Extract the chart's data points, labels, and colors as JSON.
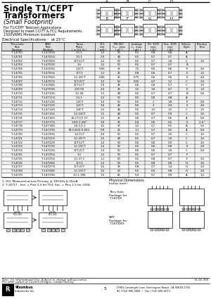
{
  "title_line1": "Single T1/CEPT",
  "title_line2": "Transformers",
  "subtitle": "(Small Footprint)",
  "desc_lines": [
    "For T1/CEPT Telecom Applications",
    "Designed to meet CCITT & FCC Requirements",
    "1500VRMS Minimum Isolation"
  ],
  "elec_spec_header": "Electrical Specifications ¹  at 25°C",
  "col_headers_line1": [
    "Thru-hole\nPart",
    "SMD\nPart",
    "Turns",
    "OCL",
    "PRI-SEC\nCₙₛₜ  max",
    "Leakage\nIₘ  max",
    "Pri. DCR\nmax",
    "Sec. DCR\nmax",
    "Schem.",
    "Primary"
  ],
  "col_headers_line2": [
    "Number",
    "Number",
    "Ratio\n( ± 0.5 % )",
    "min\n( mH )",
    "( pF )",
    "( μH )",
    "( Ω )",
    "( Ω )",
    "Style",
    "Pins"
  ],
  "table_data": [
    [
      "T-14700",
      "T-14700G",
      "1:1:1",
      "1.2",
      "50",
      "0.5",
      "0.8",
      "0.8",
      "A",
      ""
    ],
    [
      "T-14701",
      "T-14701G",
      "1:1:1",
      "2.0",
      "40",
      "0.5",
      "0.7",
      "0.7",
      "A",
      ""
    ],
    [
      "T-14702",
      "T-14702G",
      "1CT:1CT",
      "1.2",
      "50",
      "0.5",
      "0.7",
      "1.0",
      "C",
      "1-5"
    ],
    [
      "T-14703",
      "T-14703G",
      "1:1",
      "1.2",
      "50",
      "0.5",
      "0.7",
      "0.7",
      "B",
      ""
    ],
    [
      "T-14704",
      "T-14704G",
      "1:1CT",
      "0.06",
      "25",
      ".75",
      "0.6",
      "0.6",
      "E",
      "2-6"
    ],
    [
      "T-14705",
      "T-14705G",
      "1CT:1",
      "1.2",
      "25",
      "0.8",
      "0.6",
      "0.7",
      "E",
      "1-5"
    ],
    [
      "T-14706",
      "T-14706G",
      "1:1.25CT",
      "0.06",
      "25",
      "0.75",
      "0.6",
      "0.6",
      "E",
      "2-6"
    ],
    [
      "T-14707",
      "T-14707G",
      "1CT:2CT",
      "1.2",
      "50",
      "0.55",
      "0.7",
      "1.1",
      "C",
      "1-5"
    ],
    [
      "T-14708",
      "T-14708G",
      "2CT:1CT",
      "2.0",
      "45",
      "0.6",
      "0.6",
      "0.7",
      "C",
      "1-5"
    ],
    [
      "T-14709",
      "T-14709G",
      "2.5CT:II",
      "2.0",
      "25",
      "1.5",
      "1.0",
      "0.7",
      "E",
      "1-5"
    ],
    [
      "T-14710",
      "T-14710G",
      "1:1.36",
      "1.5",
      "40",
      "0.5",
      "0.7",
      "0.7",
      "B",
      "5-6"
    ],
    [
      "T-14711",
      "T-14711G",
      "1:1:1",
      "1.2",
      "50",
      "0.5",
      "0.8",
      "0.8",
      "A",
      ""
    ],
    [
      "T-14712",
      "T-14712G",
      "1:2CT",
      "1.2",
      "50",
      "0.5",
      "1",
      "1.8",
      "E",
      "2-6"
    ],
    [
      "T-14713",
      "T-14713G",
      "1:2CT",
      "3.0",
      "45",
      "0.6",
      "2",
      "2.4",
      "E",
      "2-6"
    ],
    [
      "T-14714",
      "T-14714G",
      "1:4CT",
      "1.5",
      "40",
      "0.5",
      "1.5",
      "1.5",
      "C",
      "1-5"
    ],
    [
      "T-14715",
      "T-14715G",
      "1:1.14CT",
      "1.5",
      "40",
      "0.5",
      "0.7",
      "5.9",
      "C",
      "1-5"
    ],
    [
      "T-14716",
      "T-14716G",
      "16,17:0.5:17",
      "1.5",
      "25",
      "0.6",
      "0.7",
      "0.6",
      "A",
      "5-6"
    ],
    [
      "T-14717",
      "T-14717G",
      "1.5/1:1.26/²",
      "1.0",
      "35",
      "0.4",
      "0.6",
      "0.5",
      "E",
      "2-6 ²"
    ],
    [
      "T-14718",
      "T-14718G",
      "1:0.5:2:1",
      "1.5",
      "25",
      "1.2",
      "0.7",
      "0.5",
      "A",
      "5-6"
    ],
    [
      "T-14719",
      "T-14719G",
      "E1:0.833:0.833",
      "0.9",
      "25",
      "1.1",
      "0.7",
      "0.5",
      "A",
      "5-6"
    ],
    [
      "T-14720",
      "T-14720G",
      "1:2:1CT",
      "2.0",
      "50",
      "0.5",
      "0.7",
      "1.0",
      "C",
      "1-5"
    ],
    [
      "T-14721",
      "T-14721G",
      "1:1.25CT",
      "1.5",
      "40",
      "0.5",
      "0.7",
      "1.0",
      "C",
      "1-5"
    ],
    [
      "T-14722",
      "T-14722G",
      "1CT:1CT",
      "1.2",
      "50",
      "0.6",
      "0.6",
      "0.9",
      "C",
      "1-5"
    ],
    [
      "T-14723",
      "T-14723G",
      "1:1.15CT",
      "1.2",
      "50",
      "0.5",
      "0.6",
      "0.8",
      "E",
      "2-6"
    ],
    [
      "T-14724",
      "T-14724G",
      "1CT:2CT",
      "1.2",
      "50",
      "0.6",
      "0.6",
      "1.0",
      "C",
      "2-6"
    ],
    [
      "T-14725",
      "T-14725G",
      "1:1",
      "1.2",
      "50",
      "0.5",
      "0.7",
      "0.7",
      "F",
      ""
    ],
    [
      "T-14725",
      "T-14725G",
      "1:1.37:1",
      "1.2",
      "60",
      "0.5",
      "0.8",
      "0.7",
      "F",
      "1-5"
    ],
    [
      "T-14726",
      "T-14726G",
      "1CT:1",
      "1.2",
      "50",
      "0.5",
      "0.8",
      "0.8",
      "H",
      "1-5"
    ],
    [
      "T-14727",
      "T-14727G",
      "1CT:2CT",
      "1.5",
      "35",
      "0.8",
      "0.7",
      "1.4",
      "G",
      "1-5"
    ],
    [
      "T-14728",
      "T-14728G",
      "1:1.15CT",
      "1.2",
      "50",
      "0.5",
      "0.6",
      "0.8",
      "H",
      "2-6"
    ],
    [
      "T-14729",
      "T-14729G",
      "1:1:1.286",
      "1.5",
      "65",
      "0.4",
      "0.7",
      "0.9",
      "A",
      "1-2"
    ]
  ],
  "footnotes": [
    "1. OCL Measured across Primary @ 100 kHz & 20mA",
    "2. T-14717 - Sec. = Pins 3-5 for T63; Sec. = Pins 1-5 for 120Ω"
  ],
  "phys_dim_title": "Physical Dimensions",
  "phys_dim_sub": "Inches (mm)",
  "pkg_label_1": "Thru-hole\nPackage for\nT-147XX",
  "pkg_label_2": "SMT\nPackage for\nT-147XXG",
  "bottom_note": "Spec. for informational Use. Subject to change without notice.",
  "bottom_note2": "For other values or Custom Designs, contact factory.",
  "part_number_bottom": "T1-03-300",
  "company_line1": "Rhombus",
  "company_line2": "Industries Inc.",
  "address": "17881 Cartwright Lane, Huntington Beach, CA 92649-1705",
  "contact": "Tel: (714) 895-0066  •  Fax: (714) 895-0073",
  "page": "5"
}
